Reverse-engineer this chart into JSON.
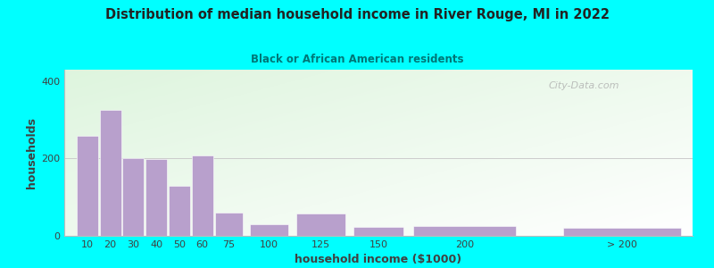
{
  "title": "Distribution of median household income in River Rouge, MI in 2022",
  "subtitle": "Black or African American residents",
  "xlabel": "household income ($1000)",
  "ylabel": "households",
  "bar_color": "#b8a0cc",
  "background_color": "#00ffff",
  "plot_bg_color_top_left": "#ddeedd",
  "plot_bg_color_bottom_right": "#f8fef8",
  "ylim": [
    0,
    430
  ],
  "yticks": [
    0,
    200,
    400
  ],
  "categories": [
    "10",
    "20",
    "30",
    "40",
    "50",
    "60",
    "75",
    "100",
    "125",
    "150",
    "200",
    "> 200"
  ],
  "values": [
    260,
    325,
    200,
    198,
    130,
    207,
    60,
    30,
    58,
    22,
    25,
    20
  ],
  "bar_lefts": [
    5,
    15,
    25,
    35,
    45,
    55,
    65,
    80,
    100,
    125,
    150,
    215
  ],
  "bar_widths": [
    10,
    10,
    10,
    10,
    10,
    10,
    13,
    18,
    23,
    23,
    48,
    55
  ],
  "watermark": "City-Data.com"
}
